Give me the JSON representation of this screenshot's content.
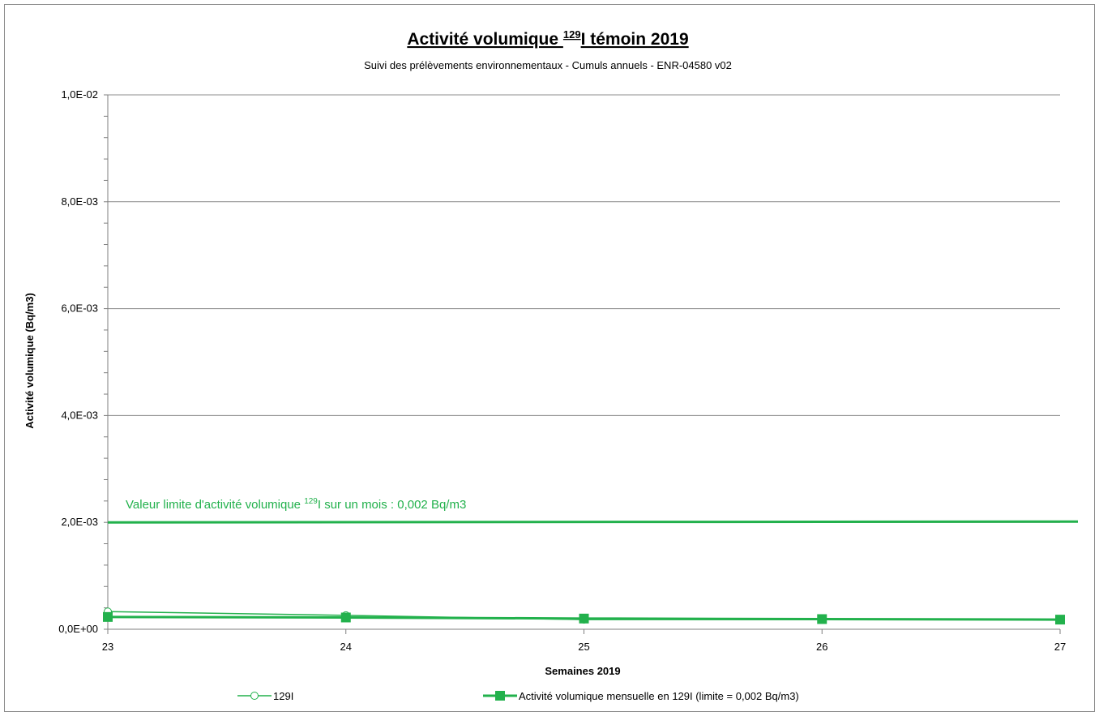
{
  "chart_data": {
    "type": "line",
    "title": {
      "prefix": "Activité volumique ",
      "sup": "129",
      "suffix": "I témoin 2019"
    },
    "subtitle": "Suivi des prélèvements environnementaux - Cumuls annuels - ENR-04580 v02",
    "xlabel": "Semaines 2019",
    "ylabel": "Activité volumique (Bq/m3)",
    "x": [
      23,
      24,
      25,
      26,
      27
    ],
    "x_ticks": [
      "23",
      "24",
      "25",
      "26",
      "27"
    ],
    "xlim": [
      23,
      27
    ],
    "ylim": [
      0,
      0.01
    ],
    "y_ticks": [
      {
        "value": 0,
        "label": "0,0E+00"
      },
      {
        "value": 0.002,
        "label": "2,0E-03"
      },
      {
        "value": 0.004,
        "label": "4,0E-03"
      },
      {
        "value": 0.006,
        "label": "6,0E-03"
      },
      {
        "value": 0.008,
        "label": "8,0E-03"
      },
      {
        "value": 0.01,
        "label": "1,0E-02"
      }
    ],
    "grid": true,
    "legend_position": "bottom",
    "series": [
      {
        "name": "129I",
        "marker": "open-circle",
        "color": "#22b14c",
        "points": [
          [
            23,
            0.00033
          ],
          [
            24,
            0.00026
          ],
          [
            25,
            0.00018
          ],
          [
            26,
            0.00018
          ]
        ]
      },
      {
        "name": "Activité volumique mensuelle en 129I  (limite = 0,002 Bq/m3)",
        "marker": "filled-square",
        "color": "#22b14c",
        "points": [
          [
            23,
            0.00023
          ],
          [
            24,
            0.00022
          ],
          [
            25,
            0.0002
          ],
          [
            26,
            0.00019
          ],
          [
            27,
            0.00018
          ]
        ]
      }
    ],
    "limit_line": {
      "value": 0.002,
      "color": "#22b14c",
      "label": {
        "prefix": "Valeur limite d'activité volumique ",
        "sup": "129",
        "suffix": "I sur un mois : 0,002 Bq/m3"
      }
    }
  },
  "colors": {
    "series": "#22b14c",
    "grid": "#8c8c8c",
    "axis": "#7f7f7f"
  }
}
